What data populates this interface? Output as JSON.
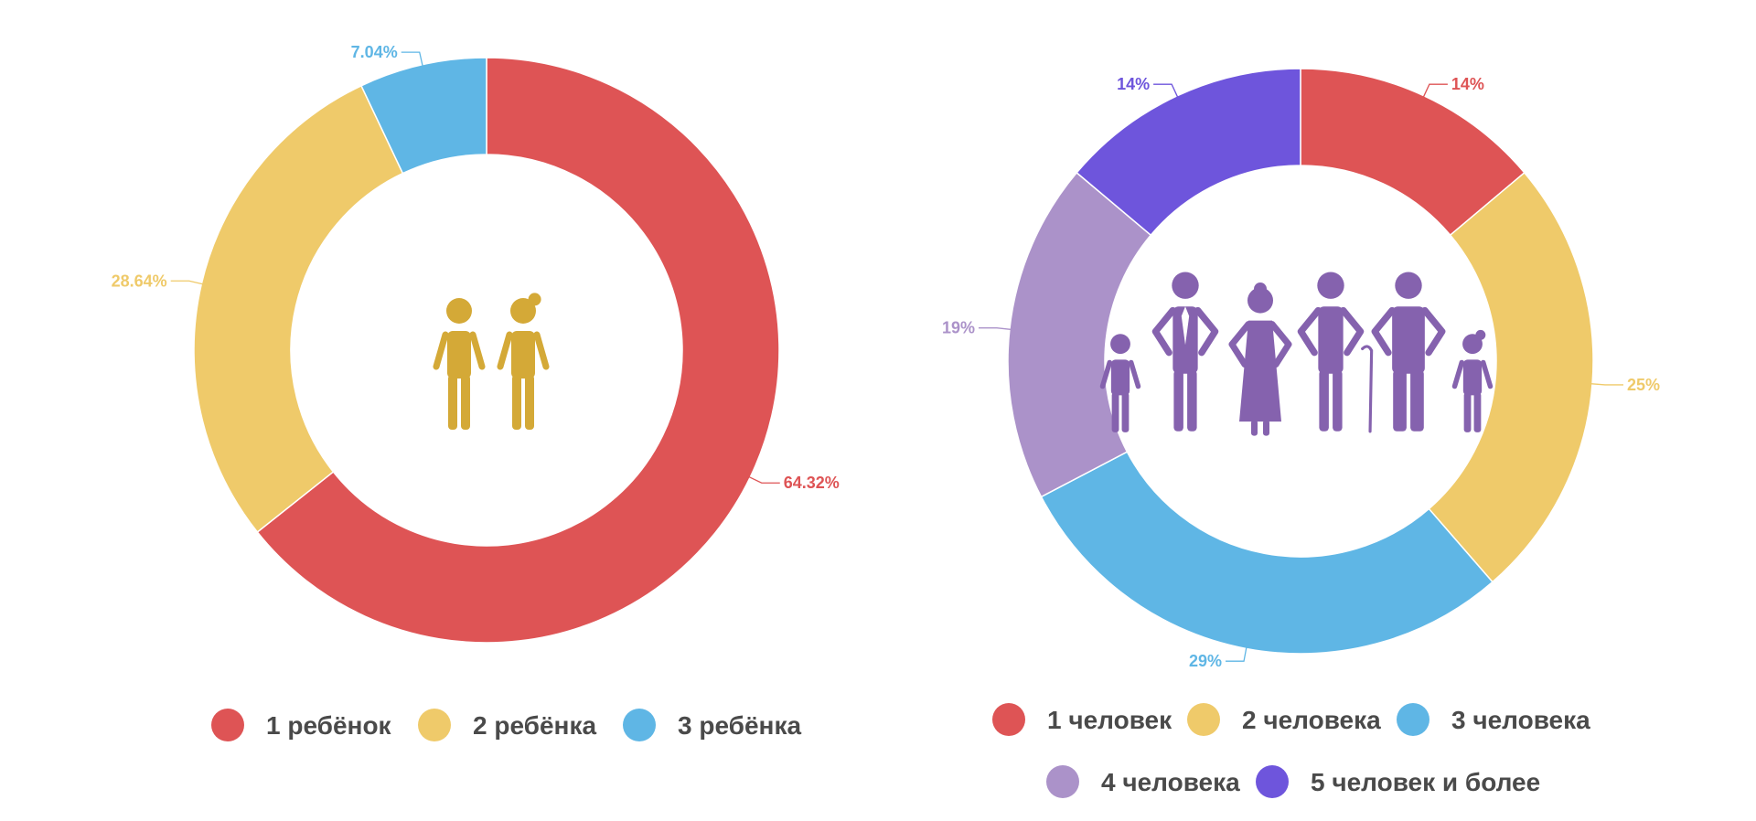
{
  "chart_data": [
    {
      "type": "pie",
      "variant": "donut",
      "title": "",
      "categories": [
        "1 ребёнок",
        "2 ребёнка",
        "3 ребёнка"
      ],
      "values": [
        64.32,
        28.64,
        7.04
      ],
      "labels": [
        "64.32%",
        "28.64%",
        "7.04%"
      ],
      "colors": [
        "#de5455",
        "#efca6a",
        "#5fb6e5"
      ],
      "center_icon": "two-children-icon",
      "center_icon_color": "#d4a937",
      "legend_position": "bottom"
    },
    {
      "type": "pie",
      "variant": "donut",
      "title": "",
      "categories": [
        "1 человек",
        "2 человека",
        "3 человека",
        "4 человека",
        "5 человек и более"
      ],
      "values": [
        14,
        25,
        29,
        19,
        14
      ],
      "labels": [
        "14%",
        "25%",
        "29%",
        "19%",
        "14%"
      ],
      "colors": [
        "#de5455",
        "#efca6a",
        "#5fb6e5",
        "#ab92c9",
        "#6e55dc"
      ],
      "center_icon": "family-group-icon",
      "center_icon_color": "#8562ae",
      "legend_position": "bottom"
    }
  ]
}
